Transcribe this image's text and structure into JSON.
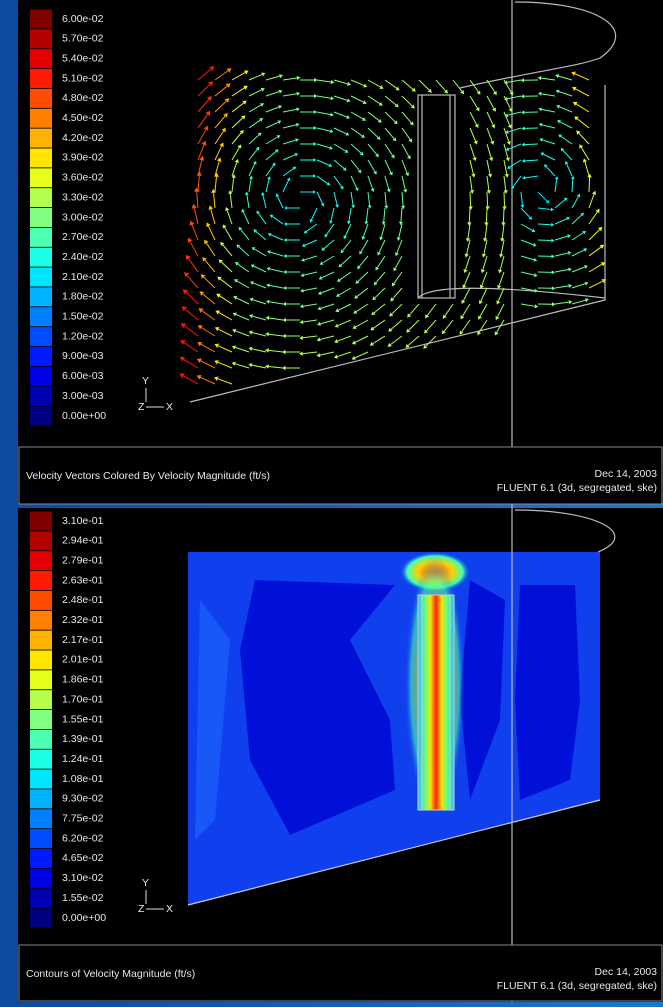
{
  "panels": [
    {
      "legend": [
        "6.00e-02",
        "5.70e-02",
        "5.40e-02",
        "5.10e-02",
        "4.80e-02",
        "4.50e-02",
        "4.20e-02",
        "3.90e-02",
        "3.60e-02",
        "3.30e-02",
        "3.00e-02",
        "2.70e-02",
        "2.40e-02",
        "2.10e-02",
        "1.80e-02",
        "1.50e-02",
        "1.20e-02",
        "9.00e-03",
        "6.00e-03",
        "3.00e-03",
        "0.00e+00"
      ],
      "axes": {
        "y": "Y",
        "z": "Z",
        "x": "X"
      },
      "caption": "Velocity Vectors Colored By Velocity Magnitude (ft/s)",
      "date": "Dec 14, 2003",
      "software": "FLUENT 6.1 (3d, segregated, ske)"
    },
    {
      "legend": [
        "3.10e-01",
        "2.94e-01",
        "2.79e-01",
        "2.63e-01",
        "2.48e-01",
        "2.32e-01",
        "2.17e-01",
        "2.01e-01",
        "1.86e-01",
        "1.70e-01",
        "1.55e-01",
        "1.39e-01",
        "1.24e-01",
        "1.08e-01",
        "9.30e-02",
        "7.75e-02",
        "6.20e-02",
        "4.65e-02",
        "3.10e-02",
        "1.55e-02",
        "0.00e+00"
      ],
      "axes": {
        "y": "Y",
        "z": "Z",
        "x": "X"
      },
      "caption": "Contours of Velocity Magnitude (ft/s)",
      "date": "Dec 14, 2003",
      "software": "FLUENT 6.1 (3d, segregated, ske)"
    }
  ]
}
